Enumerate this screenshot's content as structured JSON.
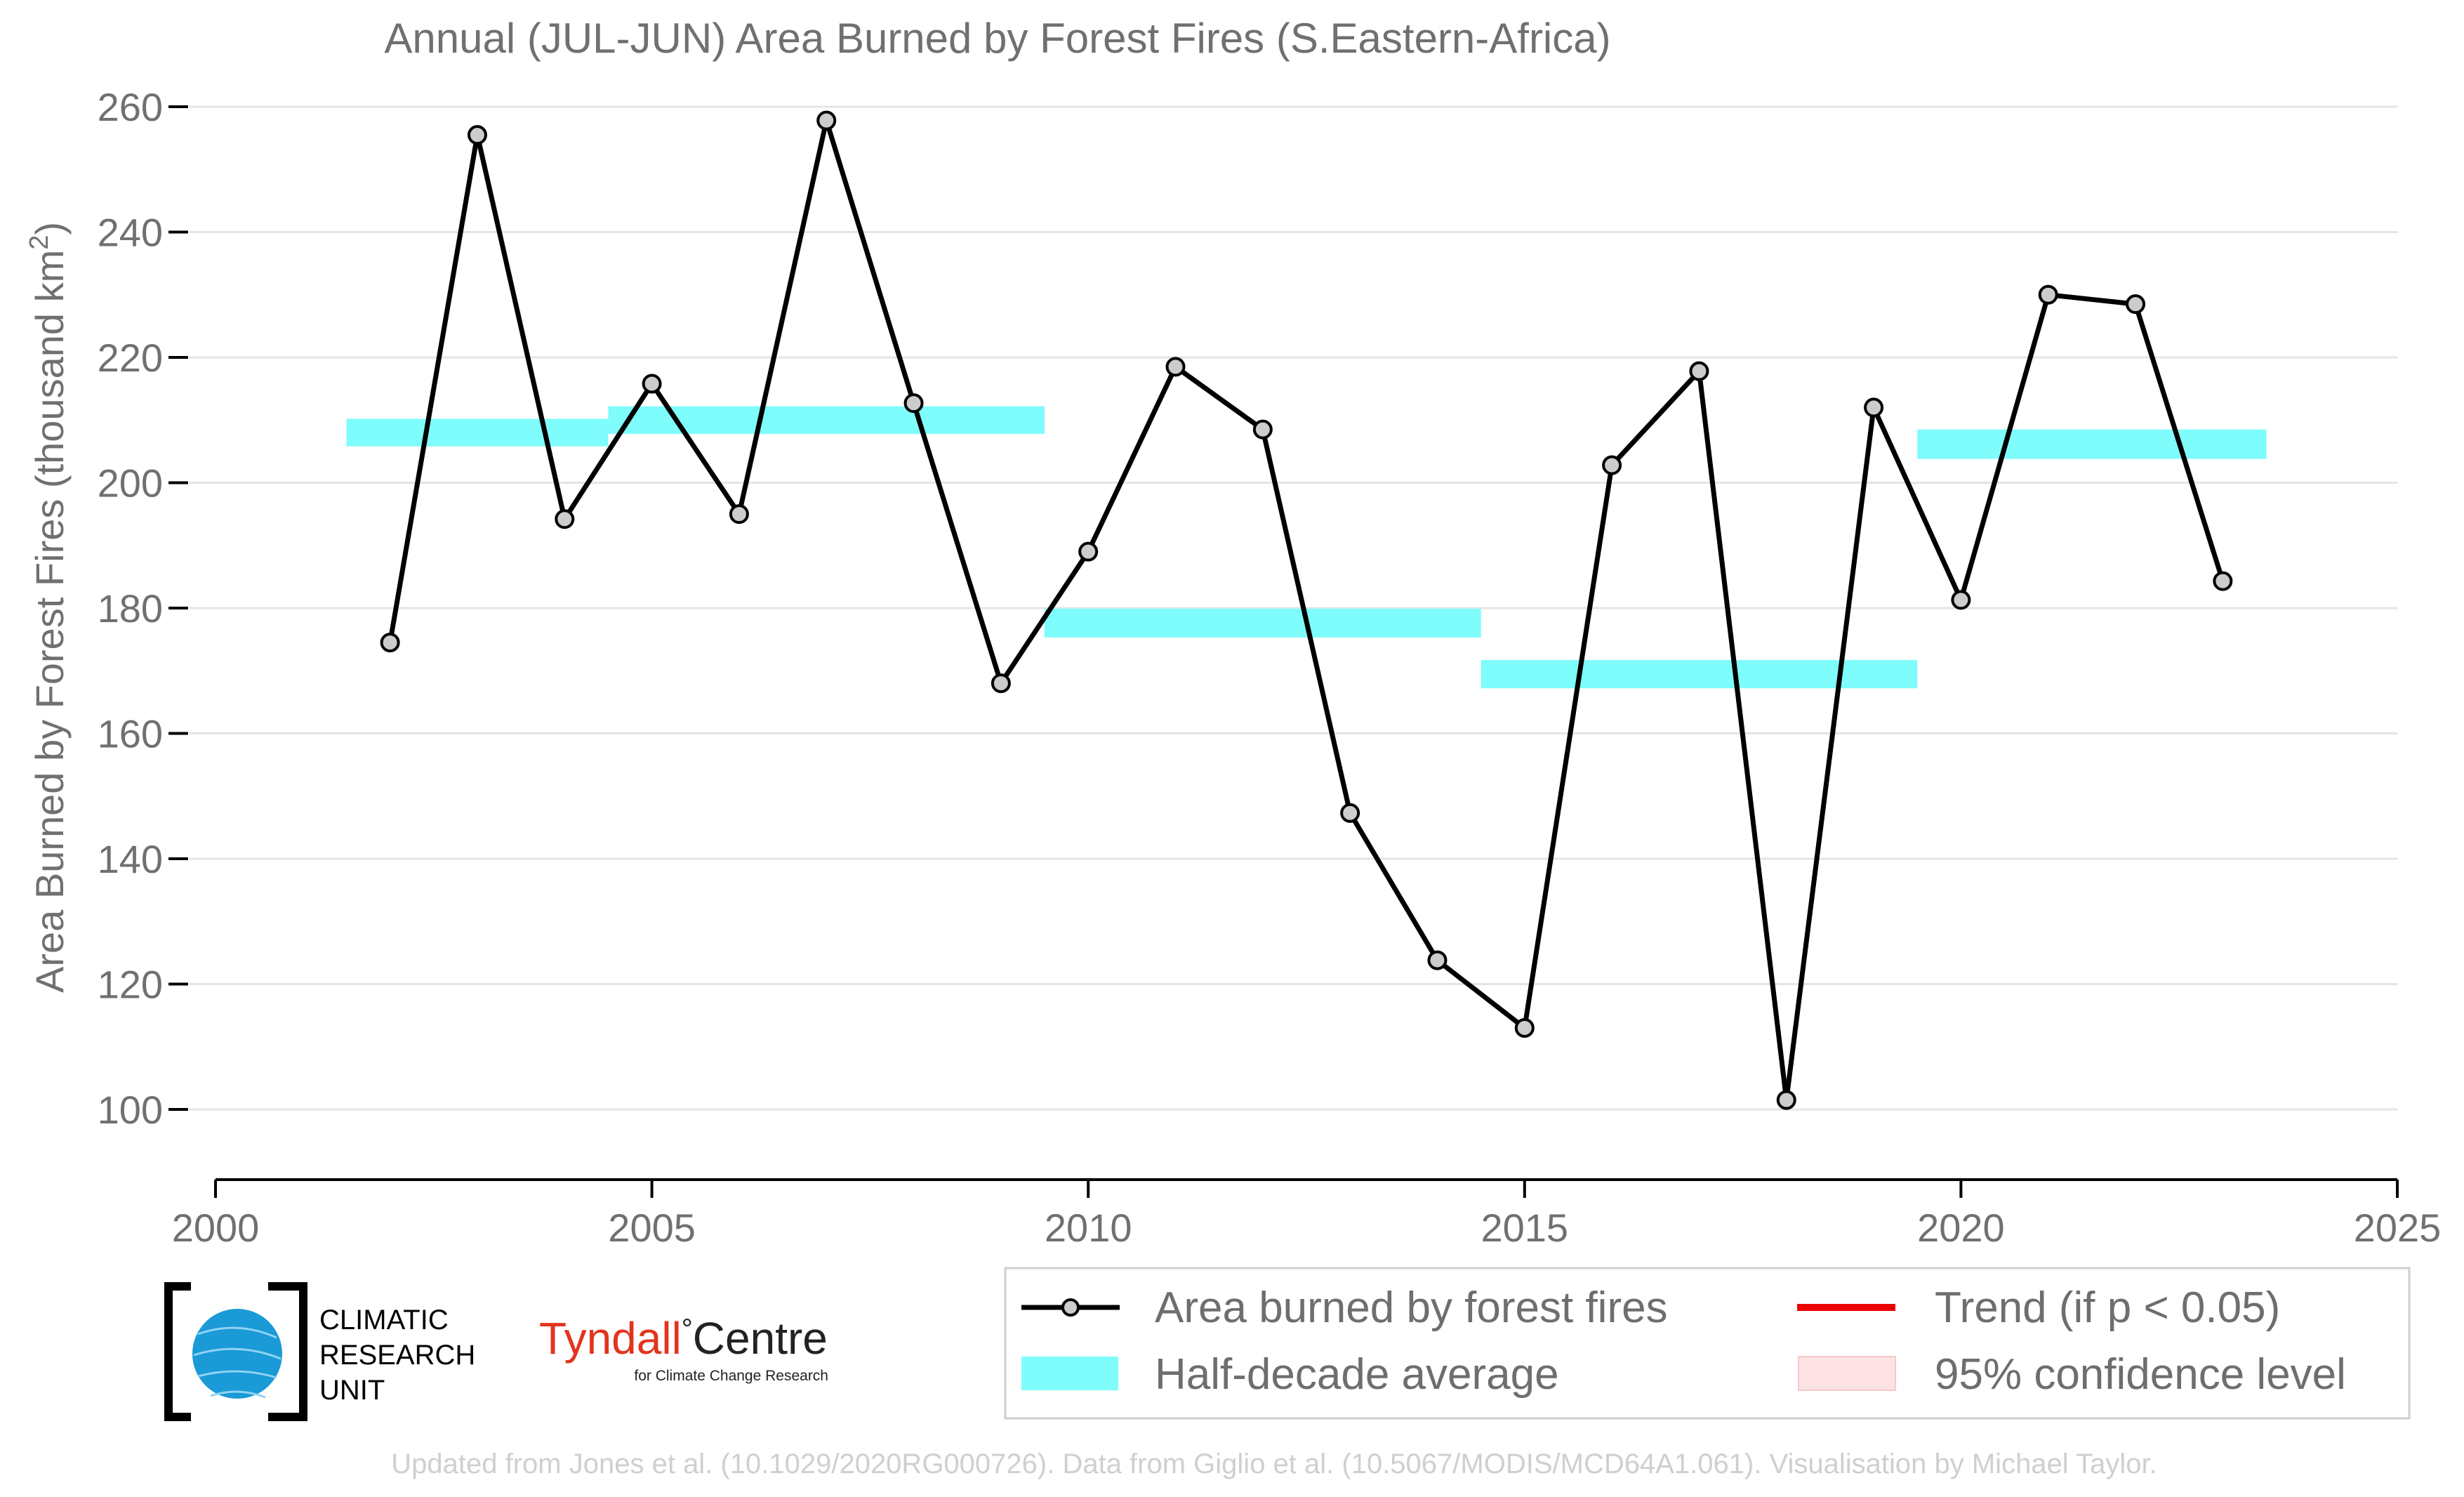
{
  "chart_data": {
    "type": "line",
    "title": "Annual (JUL-JUN) Area Burned by Forest Fires (S.Eastern-Africa)",
    "ylabel_main": "Area Burned by Forest Fires (thousand km",
    "ylabel_sup": "2",
    "ylabel_end": ")",
    "xlabel": "",
    "xlim": [
      2000,
      2025
    ],
    "ylim": [
      90,
      262
    ],
    "xticks": [
      2000,
      2005,
      2010,
      2015,
      2020,
      2025
    ],
    "yticks": [
      100,
      120,
      140,
      160,
      180,
      200,
      220,
      240,
      260
    ],
    "grid": "horizontal",
    "series": [
      {
        "name": "Area burned by forest fires",
        "color": "#000000",
        "marker_fill": "#cccccc",
        "x": [
          2002,
          2003,
          2004,
          2005,
          2006,
          2007,
          2008,
          2009,
          2010,
          2011,
          2012,
          2013,
          2014,
          2015,
          2016,
          2017,
          2018,
          2019,
          2020,
          2021,
          2022,
          2023
        ],
        "y": [
          174.5,
          255.5,
          194.2,
          215.8,
          195.0,
          257.8,
          212.7,
          168.0,
          189.0,
          218.5,
          208.5,
          147.3,
          123.8,
          113.0,
          202.8,
          217.8,
          101.5,
          212.0,
          181.3,
          230.0,
          228.5,
          184.3
        ]
      }
    ],
    "half_decade_average": {
      "name": "Half-decade average",
      "color": "#7ffcfc",
      "segments": [
        {
          "x0": 2001.5,
          "x1": 2004.5,
          "y0": 205.8,
          "y1": 210.2
        },
        {
          "x0": 2004.5,
          "x1": 2009.5,
          "y0": 207.8,
          "y1": 212.2
        },
        {
          "x0": 2009.5,
          "x1": 2014.5,
          "y0": 175.3,
          "y1": 179.9
        },
        {
          "x0": 2014.5,
          "x1": 2019.5,
          "y0": 167.2,
          "y1": 171.7
        },
        {
          "x0": 2019.5,
          "x1": 2023.5,
          "y0": 203.8,
          "y1": 208.5
        }
      ]
    },
    "legend": {
      "placement": "bottom-right",
      "entries": [
        {
          "label": "Area burned by forest fires",
          "kind": "line-marker",
          "color": "#000000"
        },
        {
          "label": "Trend (if p < 0.05)",
          "kind": "line",
          "color": "#ee0000"
        },
        {
          "label": "Half-decade average",
          "kind": "patch",
          "color": "#7ffcfc"
        },
        {
          "label": "95% confidence level",
          "kind": "patch",
          "color": "#fde3e3"
        }
      ]
    }
  },
  "logos": {
    "cru_line1": "CLIMATIC",
    "cru_line2": "RESEARCH",
    "cru_line3": "UNIT",
    "tyndall_name": "Tyndall",
    "tyndall_degree": "°",
    "tyndall_centre": "Centre",
    "tyndall_sub": "for Climate Change Research"
  },
  "footer": "Updated from Jones et al. (10.1029/2020RG000726). Data from Giglio et al. (10.5067/MODIS/MCD64A1.061). Visualisation by Michael Taylor.",
  "colors": {
    "cru_blue": "#1a9ad6",
    "tyndall_red": "#e2341d",
    "grid": "#e4e4e4",
    "axis": "#000000"
  }
}
